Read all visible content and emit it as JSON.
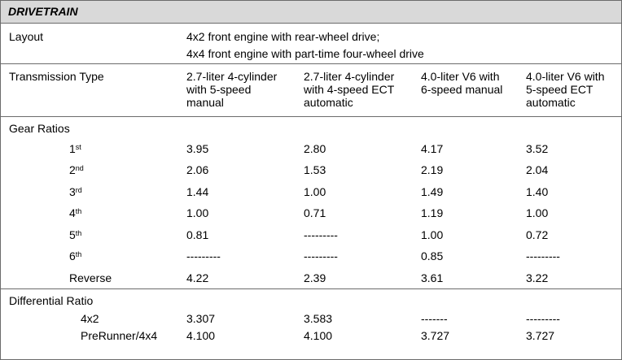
{
  "section_title": "DRIVETRAIN",
  "layout": {
    "label": "Layout",
    "lines": [
      "4x2 front engine with rear-wheel drive;",
      "4x4 front engine with part-time four-wheel drive"
    ]
  },
  "transmission": {
    "label": "Transmission Type",
    "columns": [
      [
        "2.7-liter 4-cylinder",
        "with 5-speed",
        "manual"
      ],
      [
        "2.7-liter 4-cylinder",
        "with 4-speed ECT",
        "automatic"
      ],
      [
        "4.0-liter V6 with",
        "6-speed manual"
      ],
      [
        "4.0-liter V6 with",
        "5-speed ECT",
        "automatic"
      ]
    ]
  },
  "gear_ratios": {
    "label": "Gear Ratios",
    "rows": [
      {
        "num": "1",
        "suffix": "st",
        "values": [
          "3.95",
          "2.80",
          "4.17",
          "3.52"
        ]
      },
      {
        "num": "2",
        "suffix": "nd",
        "values": [
          "2.06",
          "1.53",
          "2.19",
          "2.04"
        ]
      },
      {
        "num": "3",
        "suffix": "rd",
        "values": [
          "1.44",
          "1.00",
          "1.49",
          "1.40"
        ]
      },
      {
        "num": "4",
        "suffix": "th",
        "values": [
          "1.00",
          "0.71",
          "1.19",
          "1.00"
        ]
      },
      {
        "num": "5",
        "suffix": "th",
        "values": [
          "0.81",
          "---------",
          "1.00",
          "0.72"
        ]
      },
      {
        "num": "6",
        "suffix": "th",
        "values": [
          "---------",
          "---------",
          "0.85",
          "---------"
        ]
      },
      {
        "num": "Reverse",
        "suffix": "",
        "values": [
          "4.22",
          "2.39",
          "3.61",
          "3.22"
        ]
      }
    ]
  },
  "differential": {
    "label": "Differential Ratio",
    "rows": [
      {
        "label": "4x2",
        "values": [
          "3.307",
          "3.583",
          "-------",
          "---------"
        ]
      },
      {
        "label": "PreRunner/4x4",
        "values": [
          "4.100",
          "4.100",
          "3.727",
          "3.727"
        ]
      }
    ]
  }
}
